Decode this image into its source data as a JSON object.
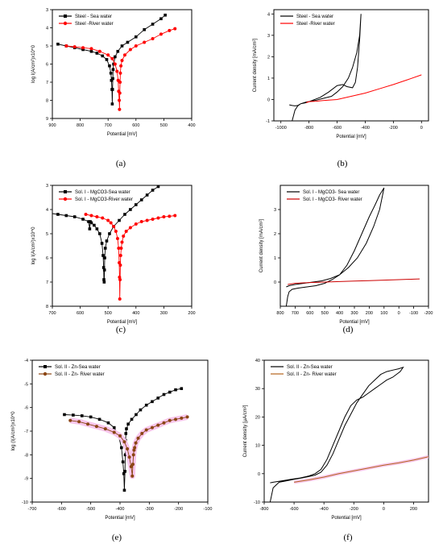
{
  "chart_data": [
    {
      "id": "a",
      "type": "scatter",
      "panel_label": "(a)",
      "xlabel": "Potential [mV]",
      "ylabel": "log I(A/cm²)x10^0",
      "xlim": [
        900,
        400
      ],
      "ylim": [
        3,
        9
      ],
      "y_inverted": true,
      "xticks": [
        900,
        800,
        700,
        600,
        500,
        400
      ],
      "yticks": [
        3,
        4,
        5,
        6,
        7,
        8,
        9
      ],
      "legend_position": "top-left",
      "series": [
        {
          "name": "Steel - Sea water",
          "color": "#000000",
          "marker": "square",
          "x": [
            880,
            850,
            820,
            790,
            760,
            740,
            720,
            705,
            695,
            690,
            688,
            686,
            685,
            684,
            683,
            682,
            680,
            675,
            665,
            650,
            630,
            600,
            570,
            540,
            510,
            495
          ],
          "y": [
            4.9,
            5.0,
            5.1,
            5.2,
            5.3,
            5.4,
            5.55,
            5.75,
            6.1,
            6.5,
            6.9,
            7.4,
            8.2,
            7.4,
            6.8,
            6.3,
            6.0,
            5.6,
            5.3,
            5.0,
            4.8,
            4.5,
            4.1,
            3.8,
            3.5,
            3.3
          ]
        },
        {
          "name": "Steel -River water",
          "color": "#ff0000",
          "marker": "circle",
          "x": [
            850,
            820,
            790,
            760,
            730,
            700,
            685,
            675,
            668,
            664,
            662,
            660,
            659,
            658,
            657,
            656,
            654,
            650,
            640,
            620,
            600,
            570,
            540,
            510,
            480,
            460
          ],
          "y": [
            5.0,
            5.05,
            5.1,
            5.15,
            5.3,
            5.5,
            5.7,
            6.0,
            6.4,
            6.9,
            7.5,
            8.0,
            8.5,
            7.6,
            7.0,
            6.5,
            6.1,
            5.8,
            5.5,
            5.2,
            5.0,
            4.8,
            4.6,
            4.35,
            4.15,
            4.05
          ]
        }
      ]
    },
    {
      "id": "b",
      "type": "line",
      "panel_label": "(b)",
      "xlabel": "Potential [mV]",
      "ylabel": "Current density [mA/cm²]",
      "xlim": [
        -1050,
        50
      ],
      "ylim": [
        -1,
        4.2
      ],
      "xticks": [
        -1000,
        -800,
        -600,
        -400,
        -200,
        0
      ],
      "yticks": [
        -1,
        0,
        1,
        2,
        3,
        4
      ],
      "legend_position": "top-left",
      "series": [
        {
          "name": "Steel - Sea water",
          "color": "#000000",
          "x": [
            -920,
            -900,
            -880,
            -860,
            -820,
            -780,
            -720,
            -660,
            -600,
            -560,
            -530,
            -490,
            -470,
            -455,
            -440,
            -430,
            -440,
            -460,
            -490,
            -520,
            -560,
            -600,
            -640,
            -700,
            -760,
            -820,
            -860,
            -880,
            -900,
            -920,
            -940
          ],
          "y": [
            -1.0,
            -0.5,
            -0.3,
            -0.2,
            -0.15,
            -0.05,
            0.1,
            0.35,
            0.65,
            0.7,
            0.6,
            0.55,
            0.8,
            1.5,
            2.8,
            4.0,
            3.0,
            2.2,
            1.5,
            1.0,
            0.6,
            0.35,
            0.15,
            0.05,
            -0.05,
            -0.12,
            -0.2,
            -0.28,
            -0.3,
            -0.28,
            -0.25
          ]
        },
        {
          "name": "Steel -River water",
          "color": "#ff0000",
          "x": [
            -820,
            -800,
            -750,
            -700,
            -600,
            -500,
            -400,
            -300,
            -200,
            -100,
            0
          ],
          "y": [
            -0.15,
            -0.1,
            -0.08,
            -0.05,
            0.0,
            0.15,
            0.3,
            0.5,
            0.7,
            0.92,
            1.15
          ]
        }
      ]
    },
    {
      "id": "c",
      "type": "scatter",
      "panel_label": "(c)",
      "xlabel": "Potential [mV]",
      "ylabel": "log I(A/cm²)x10^0",
      "xlim": [
        700,
        200
      ],
      "ylim": [
        3,
        8
      ],
      "y_inverted": true,
      "xticks": [
        700,
        600,
        500,
        400,
        300,
        200
      ],
      "yticks": [
        3,
        4,
        5,
        6,
        7,
        8
      ],
      "legend_position": "top-left",
      "series": [
        {
          "name": "Sol. I - MgCO3-Sea water",
          "color": "#000000",
          "marker": "square",
          "x": [
            710,
            680,
            650,
            620,
            590,
            570,
            566,
            564,
            560,
            550,
            540,
            530,
            522,
            518,
            516,
            515,
            514,
            513,
            512,
            510,
            505,
            495,
            480,
            460,
            440,
            420,
            400,
            380,
            360,
            340,
            320
          ],
          "y": [
            4.15,
            4.2,
            4.25,
            4.3,
            4.4,
            4.5,
            4.8,
            4.5,
            4.55,
            4.65,
            4.8,
            5.0,
            5.4,
            5.9,
            6.4,
            6.9,
            7.0,
            6.5,
            6.0,
            5.6,
            5.3,
            5.0,
            4.7,
            4.45,
            4.2,
            4.0,
            3.8,
            3.6,
            3.4,
            3.2,
            3.05
          ]
        },
        {
          "name": "Sol. I - MgCO3-River water",
          "color": "#ff0000",
          "marker": "circle",
          "x": [
            580,
            560,
            540,
            520,
            500,
            490,
            480,
            472,
            466,
            462,
            460,
            459,
            458,
            457,
            456,
            455,
            453,
            450,
            445,
            435,
            420,
            400,
            380,
            360,
            340,
            320,
            300,
            280,
            260
          ],
          "y": [
            4.2,
            4.25,
            4.3,
            4.35,
            4.45,
            4.55,
            4.7,
            4.9,
            5.2,
            5.6,
            6.2,
            6.8,
            7.7,
            6.9,
            6.3,
            5.9,
            5.6,
            5.35,
            5.1,
            4.9,
            4.75,
            4.6,
            4.5,
            4.45,
            4.4,
            4.35,
            4.3,
            4.28,
            4.25
          ]
        }
      ]
    },
    {
      "id": "d",
      "type": "line",
      "panel_label": "(d)",
      "xlabel": "Potential [mV]",
      "ylabel": "Current density [mA/cm²]",
      "xlim": [
        800,
        -200
      ],
      "ylim": [
        -1,
        4
      ],
      "xticks": [
        800,
        700,
        600,
        500,
        400,
        300,
        200,
        100,
        0,
        -100,
        -200
      ],
      "yticks": [
        0,
        1,
        2,
        3
      ],
      "legend_position": "top-left",
      "series": [
        {
          "name": "Sol. I - MgCO3- Sea water",
          "color": "#000000",
          "x": [
            760,
            750,
            740,
            720,
            680,
            620,
            560,
            500,
            450,
            400,
            350,
            300,
            250,
            200,
            160,
            130,
            110,
            100,
            110,
            130,
            170,
            220,
            280,
            340,
            400,
            460,
            520,
            580,
            640,
            700,
            740,
            760
          ],
          "y": [
            -1.0,
            -0.6,
            -0.4,
            -0.3,
            -0.25,
            -0.2,
            -0.15,
            -0.05,
            0.1,
            0.3,
            0.7,
            1.3,
            2.0,
            2.7,
            3.2,
            3.6,
            3.8,
            3.9,
            3.6,
            3.0,
            2.3,
            1.6,
            1.0,
            0.6,
            0.3,
            0.15,
            0.05,
            0.0,
            -0.05,
            -0.1,
            -0.15,
            -0.2
          ]
        },
        {
          "name": "Sol. I - MgCO3- River water",
          "color": "#cc0000",
          "x": [
            750,
            700,
            600,
            500,
            400,
            300,
            200,
            100,
            0,
            -100,
            -140
          ],
          "y": [
            -0.1,
            -0.05,
            -0.02,
            0.0,
            0.02,
            0.04,
            0.06,
            0.08,
            0.1,
            0.12,
            0.13
          ]
        }
      ]
    },
    {
      "id": "e",
      "type": "scatter",
      "panel_label": "(e)",
      "xlabel": "Potential [mV]",
      "ylabel": "log (I(A/cm²)x10^0",
      "xlim": [
        -700,
        -100
      ],
      "ylim": [
        -10,
        -4
      ],
      "xticks": [
        -700,
        -600,
        -500,
        -400,
        -300,
        -200,
        -100
      ],
      "yticks": [
        -10,
        -9,
        -8,
        -7,
        -6,
        -5,
        -4
      ],
      "legend_position": "top-left",
      "series": [
        {
          "name": "Sol. II - Zn-Sea water",
          "color": "#000000",
          "marker": "square",
          "x": [
            -590,
            -560,
            -530,
            -500,
            -470,
            -440,
            -420,
            -405,
            -395,
            -390,
            -387,
            -385,
            -383,
            -382,
            -381,
            -380,
            -378,
            -372,
            -360,
            -345,
            -330,
            -310,
            -290,
            -270,
            -250,
            -230,
            -210,
            -190
          ],
          "y": [
            -6.3,
            -6.32,
            -6.35,
            -6.4,
            -6.5,
            -6.65,
            -6.85,
            -7.2,
            -7.7,
            -8.3,
            -8.8,
            -9.5,
            -8.7,
            -8.0,
            -7.4,
            -7.1,
            -6.9,
            -6.7,
            -6.5,
            -6.3,
            -6.1,
            -5.9,
            -5.75,
            -5.6,
            -5.45,
            -5.35,
            -5.25,
            -5.2
          ]
        },
        {
          "name": "Sol. II - Zn- River water",
          "color": "#8b4513",
          "marker": "circle",
          "x": [
            -570,
            -540,
            -510,
            -480,
            -450,
            -420,
            -400,
            -385,
            -375,
            -368,
            -362,
            -358,
            -356,
            -354,
            -352,
            -350,
            -346,
            -338,
            -325,
            -310,
            -290,
            -270,
            -250,
            -230,
            -210,
            -190,
            -170
          ],
          "y": [
            -6.55,
            -6.6,
            -6.7,
            -6.8,
            -6.9,
            -7.05,
            -7.2,
            -7.45,
            -7.75,
            -8.1,
            -8.5,
            -8.9,
            -8.4,
            -8.0,
            -7.8,
            -7.7,
            -7.5,
            -7.3,
            -7.1,
            -6.95,
            -6.85,
            -6.75,
            -6.65,
            -6.55,
            -6.5,
            -6.45,
            -6.4
          ]
        }
      ]
    },
    {
      "id": "f",
      "type": "line",
      "panel_label": "(f)",
      "xlabel": "Potential [mV]",
      "ylabel": "Current density [μA/cm²]",
      "xlim": [
        -800,
        300
      ],
      "ylim": [
        -10,
        40
      ],
      "xticks": [
        -800,
        -600,
        -400,
        -200,
        0,
        200
      ],
      "yticks": [
        -10,
        0,
        10,
        20,
        30,
        40
      ],
      "legend_position": "top-left",
      "series": [
        {
          "name": "Sol. II - Zn-Sea water",
          "color": "#000000",
          "x": [
            -760,
            -740,
            -700,
            -650,
            -600,
            -550,
            -500,
            -460,
            -420,
            -380,
            -340,
            -300,
            -260,
            -220,
            -180,
            -140,
            -100,
            -60,
            -20,
            20,
            60,
            100,
            130,
            110,
            60,
            20,
            -20,
            -60,
            -100,
            -140,
            -180,
            -220,
            -260,
            -300,
            -340,
            -380,
            -420,
            -460,
            -500,
            -560,
            -620,
            -680,
            -740,
            -760
          ],
          "y": [
            -10,
            -5,
            -3,
            -2.5,
            -2,
            -1.5,
            -1,
            -0.5,
            0.5,
            3,
            7,
            12,
            17,
            21,
            25,
            28,
            31,
            33,
            35,
            36,
            36.5,
            37,
            37.5,
            36,
            34,
            33,
            31.5,
            30,
            28.5,
            27,
            26,
            24,
            20,
            15,
            10,
            5,
            1.5,
            0,
            -0.8,
            -1.5,
            -2,
            -2.5,
            -3,
            -3.2
          ]
        },
        {
          "name": "Sol. II - Zn- River water",
          "color": "#b5651d",
          "x": [
            -600,
            -500,
            -400,
            -300,
            -200,
            -100,
            0,
            100,
            200,
            300
          ],
          "y": [
            -3,
            -2.2,
            -1.2,
            0,
            1.0,
            2.0,
            3.0,
            3.8,
            4.8,
            6.0
          ]
        }
      ]
    }
  ]
}
